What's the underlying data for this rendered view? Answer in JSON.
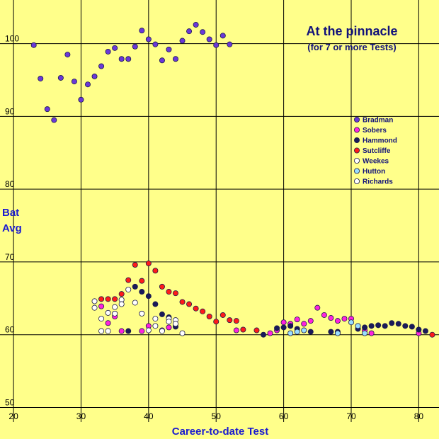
{
  "chart_data": {
    "type": "scatter",
    "title": "At the pinnacle",
    "subtitle": "(for 7 or more Tests)",
    "xlabel": "Career-to-date Test",
    "ylabel_lines": [
      "Bat",
      "Avg"
    ],
    "xlim": [
      18,
      83
    ],
    "ylim": [
      48,
      106
    ],
    "x_ticks": [
      20,
      30,
      40,
      50,
      60,
      70,
      80
    ],
    "y_ticks": [
      50,
      60,
      70,
      80,
      90,
      100
    ],
    "grid": true,
    "legend_position": "right",
    "colors": {
      "background": "#ffff8a",
      "grid": "#000000",
      "axis_text": "#1a1ad0",
      "title_text": "#12127a"
    },
    "series": [
      {
        "name": "Bradman",
        "color": "#6a38d8",
        "points": [
          [
            23,
            99.8
          ],
          [
            24,
            95.2
          ],
          [
            25,
            91
          ],
          [
            26,
            89.5
          ],
          [
            27,
            95.3
          ],
          [
            28,
            98.5
          ],
          [
            29,
            94.8
          ],
          [
            30,
            92.3
          ],
          [
            31,
            94.4
          ],
          [
            32,
            95.5
          ],
          [
            33,
            96.9
          ],
          [
            34,
            98.9
          ],
          [
            35,
            99.4
          ],
          [
            36,
            97.9
          ],
          [
            37,
            97.9
          ],
          [
            38,
            99.6
          ],
          [
            39,
            101.8
          ],
          [
            40,
            100.6
          ],
          [
            41,
            99.9
          ],
          [
            42,
            97.7
          ],
          [
            43,
            99.2
          ],
          [
            44,
            97.9
          ],
          [
            45,
            100.4
          ],
          [
            46,
            101.7
          ],
          [
            47,
            102.6
          ],
          [
            48,
            101.6
          ],
          [
            49,
            100.6
          ],
          [
            50,
            99.8
          ],
          [
            51,
            101.1
          ],
          [
            52,
            99.9
          ]
        ]
      },
      {
        "name": "Sobers",
        "color": "#ff22dd",
        "points": [
          [
            33,
            63.9
          ],
          [
            34,
            61.6
          ],
          [
            35,
            62.5
          ],
          [
            36,
            60.5
          ],
          [
            39,
            60.5
          ],
          [
            40,
            61.2
          ],
          [
            42,
            60.6
          ],
          [
            43,
            61
          ],
          [
            53,
            60.6
          ],
          [
            58,
            60.2
          ],
          [
            59,
            60.6
          ],
          [
            60,
            61.7
          ],
          [
            61,
            61.5
          ],
          [
            62,
            62.1
          ],
          [
            63,
            61.5
          ],
          [
            64,
            61.9
          ],
          [
            65,
            63.7
          ],
          [
            66,
            62.7
          ],
          [
            67,
            62.3
          ],
          [
            68,
            61.9
          ],
          [
            69,
            62.2
          ],
          [
            70,
            62.2
          ],
          [
            72,
            60.6
          ],
          [
            73,
            60.2
          ],
          [
            80,
            60.2
          ]
        ]
      },
      {
        "name": "Hammond",
        "color": "#1a1a5a",
        "points": [
          [
            37,
            60.5
          ],
          [
            38,
            66.6
          ],
          [
            39,
            65.9
          ],
          [
            40,
            65.3
          ],
          [
            41,
            64.2
          ],
          [
            42,
            62.8
          ],
          [
            43,
            62.4
          ],
          [
            44,
            61.1
          ],
          [
            57,
            60
          ],
          [
            59,
            60.9
          ],
          [
            60,
            61
          ],
          [
            61,
            61.2
          ],
          [
            62,
            60.8
          ],
          [
            64,
            60.4
          ],
          [
            67,
            60.4
          ],
          [
            68,
            60.4
          ],
          [
            71,
            60.8
          ],
          [
            72,
            61
          ],
          [
            73,
            61.2
          ],
          [
            74,
            61.3
          ],
          [
            75,
            61.2
          ],
          [
            76,
            61.6
          ],
          [
            77,
            61.5
          ],
          [
            78,
            61.2
          ],
          [
            79,
            61.1
          ],
          [
            80,
            60.7
          ],
          [
            81,
            60.5
          ]
        ]
      },
      {
        "name": "Sutcliffe",
        "color": "#ff1a1a",
        "points": [
          [
            33,
            64.9
          ],
          [
            34,
            64.9
          ],
          [
            35,
            64.9
          ],
          [
            36,
            65.6
          ],
          [
            37,
            67.5
          ],
          [
            38,
            69.6
          ],
          [
            39,
            67.4
          ],
          [
            40,
            69.8
          ],
          [
            41,
            68.8
          ],
          [
            42,
            66.6
          ],
          [
            43,
            65.9
          ],
          [
            44,
            65.7
          ],
          [
            45,
            64.5
          ],
          [
            46,
            64.2
          ],
          [
            47,
            63.6
          ],
          [
            48,
            63.2
          ],
          [
            49,
            62.5
          ],
          [
            50,
            61.8
          ],
          [
            51,
            62.7
          ],
          [
            52,
            62
          ],
          [
            53,
            61.9
          ],
          [
            54,
            60.7
          ],
          [
            56,
            60.6
          ],
          [
            82,
            60
          ]
        ]
      },
      {
        "name": "Weekes",
        "color": "#ffffff",
        "points": [
          [
            32,
            64.6
          ],
          [
            33,
            62.2
          ],
          [
            34,
            63
          ],
          [
            35,
            62.9
          ],
          [
            36,
            64.8
          ],
          [
            37,
            66.2
          ],
          [
            38,
            64.4
          ],
          [
            39,
            62.9
          ],
          [
            40,
            60.6
          ],
          [
            41,
            61.2
          ],
          [
            42,
            60.5
          ],
          [
            43,
            62.2
          ],
          [
            44,
            62
          ]
        ]
      },
      {
        "name": "Hutton",
        "color": "#99ddff",
        "points": [
          [
            61,
            60.2
          ],
          [
            62,
            60.4
          ],
          [
            63,
            60.6
          ],
          [
            68,
            60.2
          ],
          [
            70,
            61.7
          ],
          [
            71,
            61.2
          ],
          [
            72,
            60.2
          ]
        ]
      },
      {
        "name": "Richards",
        "color": "#ffffff",
        "points": [
          [
            32,
            63.7
          ],
          [
            33,
            60.5
          ],
          [
            34,
            60.5
          ],
          [
            35,
            63.8
          ],
          [
            36,
            64.2
          ],
          [
            41,
            62.2
          ],
          [
            43,
            61.8
          ],
          [
            44,
            61.5
          ],
          [
            45,
            60.2
          ]
        ]
      }
    ]
  }
}
